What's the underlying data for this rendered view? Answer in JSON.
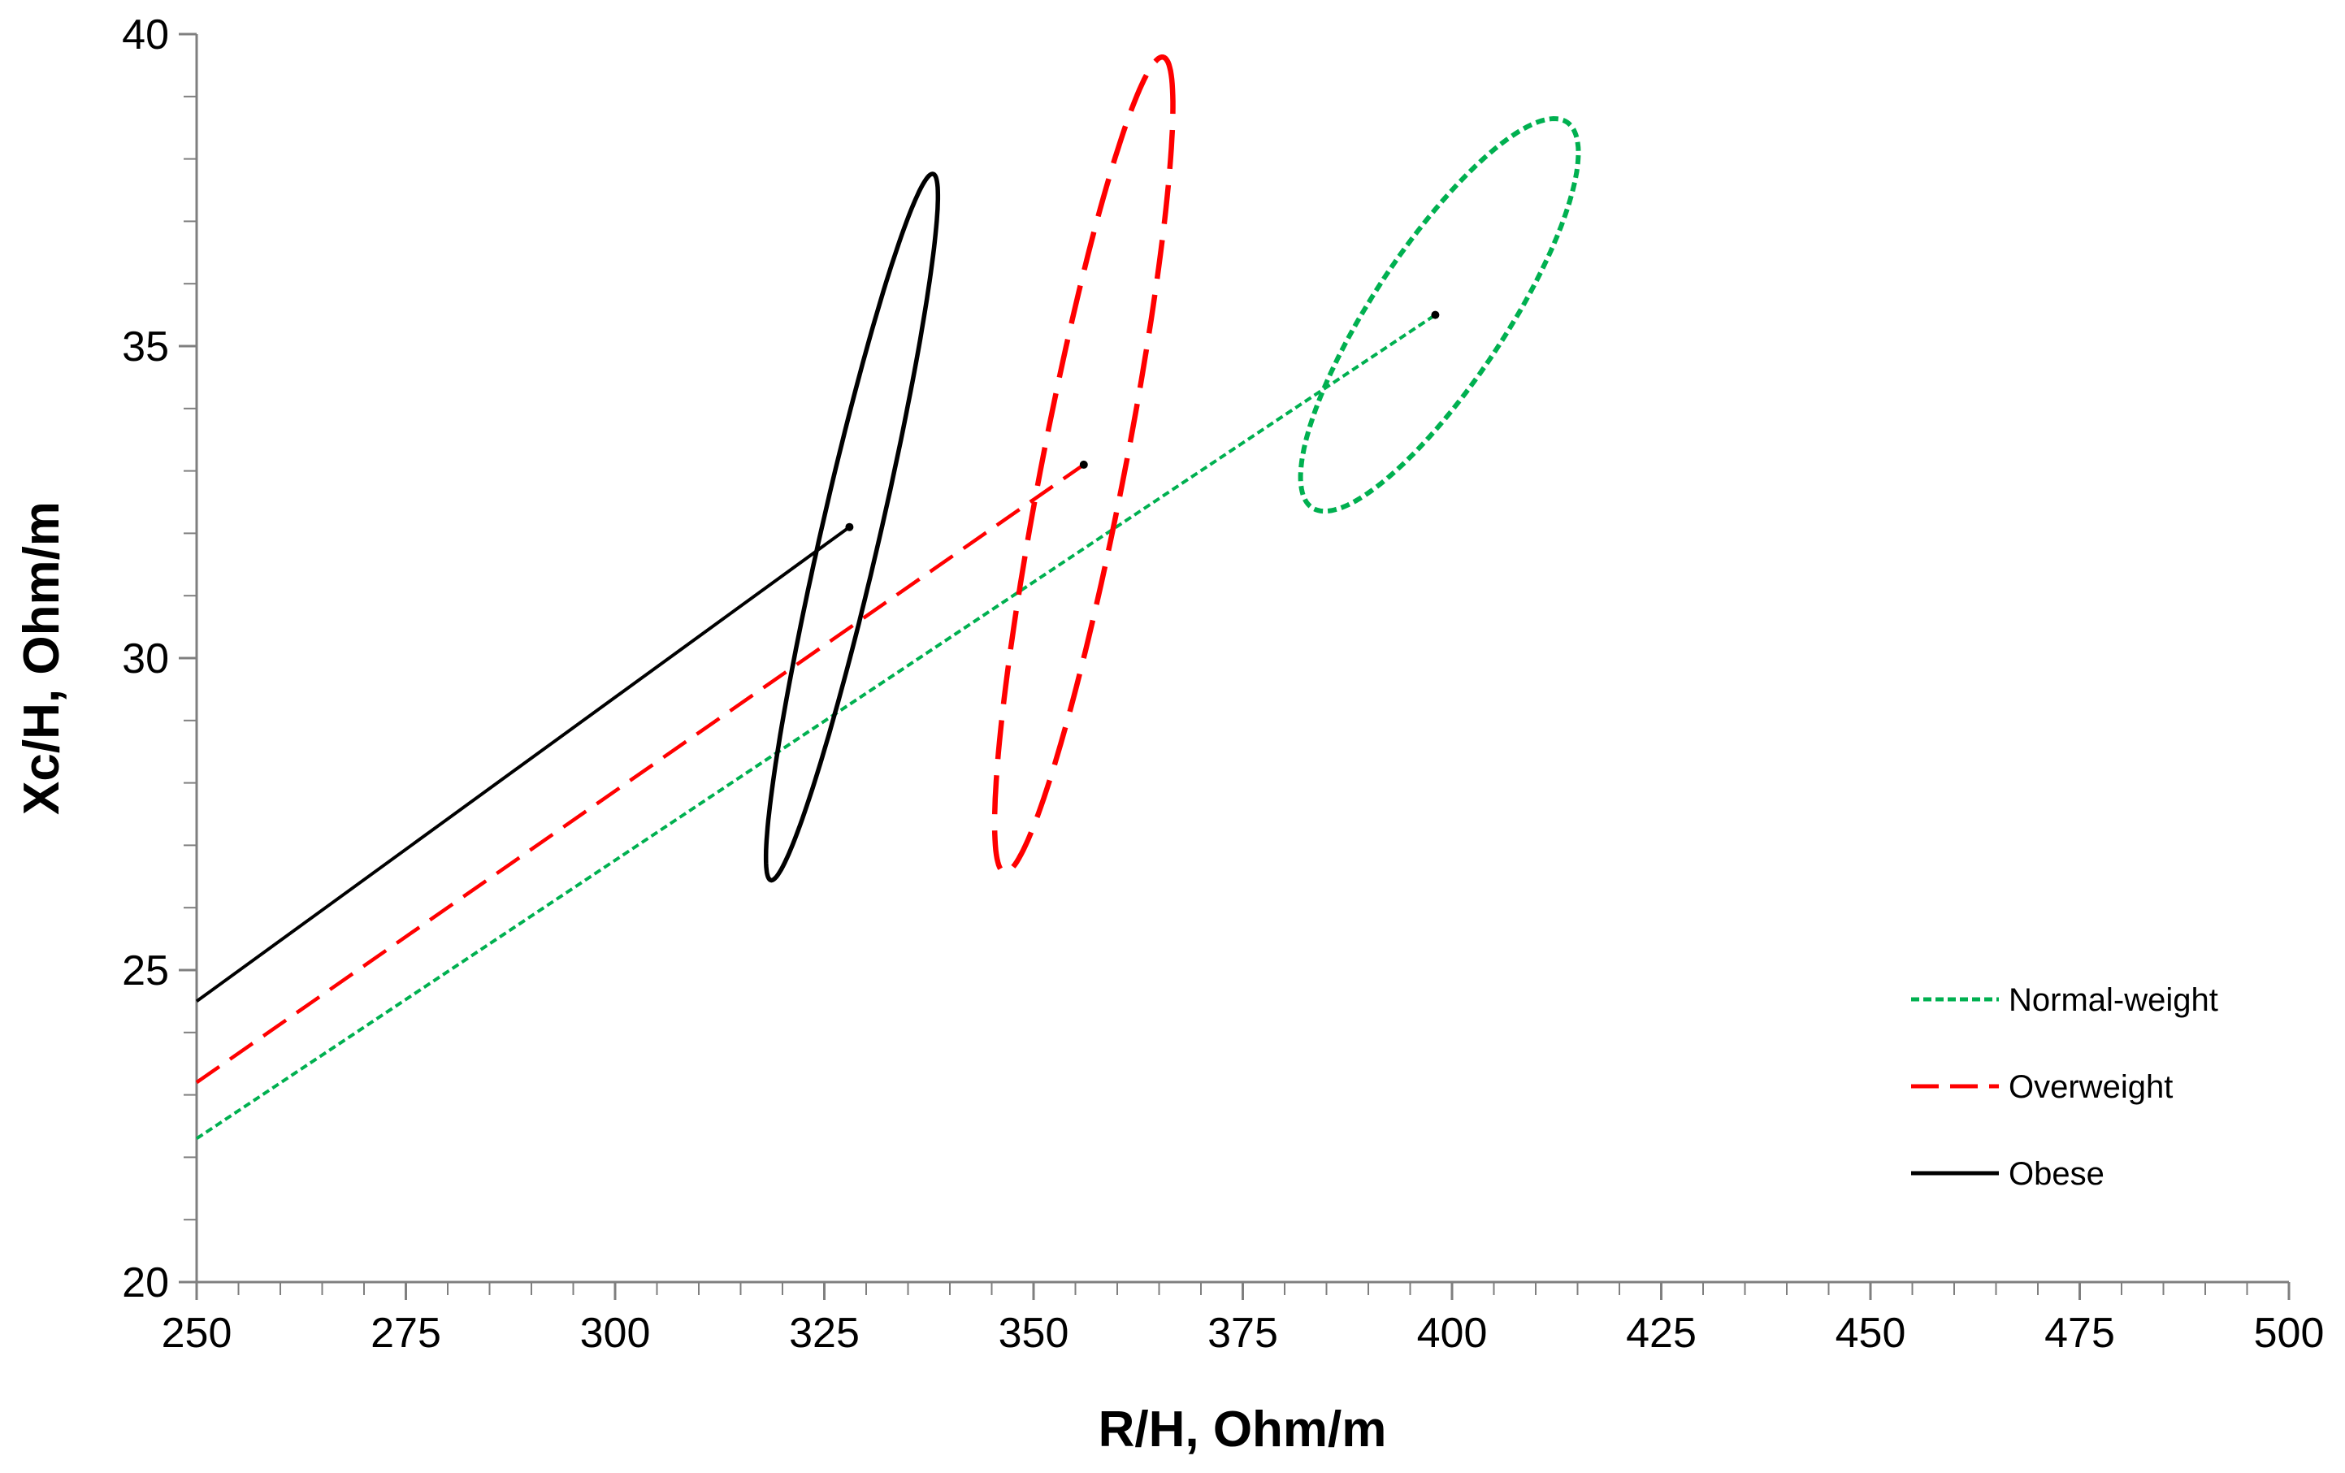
{
  "chart_data": {
    "type": "scatter",
    "title": "",
    "xlabel": "R/H, Ohm/m",
    "ylabel": "Xc/H, Ohm/m",
    "xlim": [
      250,
      500
    ],
    "ylim": [
      20,
      40
    ],
    "x_ticks": [
      250,
      275,
      300,
      325,
      350,
      375,
      400,
      425,
      450,
      475,
      500
    ],
    "y_ticks": [
      20,
      25,
      30,
      35,
      40
    ],
    "x_minor_step": 5,
    "y_minor_step": 1,
    "grid": false,
    "legend_position": "right",
    "series": [
      {
        "name": "Normal-weight",
        "color": "#00b050",
        "line_style": "short-dash",
        "mean_point": {
          "x": 398,
          "y": 35.5
        },
        "vector_start": {
          "x": 250,
          "y": 22.3
        },
        "confidence_ellipse": {
          "center_x": 398.5,
          "center_y": 35.5,
          "semi_axis_r": 16.8,
          "semi_axis_xc": 1.75,
          "angle_deg": 9
        }
      },
      {
        "name": "Overweight",
        "color": "#ff0000",
        "line_style": "long-dash",
        "mean_point": {
          "x": 356,
          "y": 33.1
        },
        "vector_start": {
          "x": 250,
          "y": 23.2
        },
        "confidence_ellipse": {
          "center_x": 356,
          "center_y": 33.1,
          "semi_axis_r": 12.2,
          "semi_axis_xc": 2.7,
          "angle_deg": 30
        }
      },
      {
        "name": "Obese",
        "color": "#000000",
        "line_style": "solid",
        "mean_point": {
          "x": 328,
          "y": 32.1
        },
        "vector_start": {
          "x": 250,
          "y": 24.5
        },
        "confidence_ellipse": {
          "center_x": 328.3,
          "center_y": 32.1,
          "semi_axis_r": 11.6,
          "semi_axis_xc": 1.75,
          "angle_deg": 28
        }
      }
    ]
  }
}
